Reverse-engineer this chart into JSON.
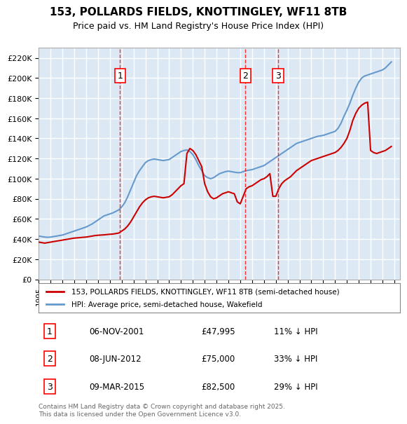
{
  "title": "153, POLLARDS FIELDS, KNOTTINGLEY, WF11 8TB",
  "subtitle": "Price paid vs. HM Land Registry's House Price Index (HPI)",
  "legend_property": "153, POLLARDS FIELDS, KNOTTINGLEY, WF11 8TB (semi-detached house)",
  "legend_hpi": "HPI: Average price, semi-detached house, Wakefield",
  "footnote": "Contains HM Land Registry data © Crown copyright and database right 2025.\nThis data is licensed under the Open Government Licence v3.0.",
  "ylabel": "",
  "ylim": [
    0,
    230000
  ],
  "yticks": [
    0,
    20000,
    40000,
    60000,
    80000,
    100000,
    120000,
    140000,
    160000,
    180000,
    200000,
    220000
  ],
  "background_color": "#dce9f5",
  "plot_bg_color": "#dce9f5",
  "grid_color": "#ffffff",
  "property_color": "#cc0000",
  "hpi_color": "#6699cc",
  "sales": [
    {
      "num": 1,
      "date_label": "06-NOV-2001",
      "price_label": "£47,995",
      "pct_label": "11% ↓ HPI",
      "year": 2001.85
    },
    {
      "num": 2,
      "date_label": "08-JUN-2012",
      "price_label": "£75,000",
      "pct_label": "33% ↓ HPI",
      "year": 2012.44
    },
    {
      "num": 3,
      "date_label": "09-MAR-2015",
      "price_label": "£82,500",
      "pct_label": "29% ↓ HPI",
      "year": 2015.19
    }
  ],
  "hpi_x": [
    1995.0,
    1995.25,
    1995.5,
    1995.75,
    1996.0,
    1996.25,
    1996.5,
    1996.75,
    1997.0,
    1997.25,
    1997.5,
    1997.75,
    1998.0,
    1998.25,
    1998.5,
    1998.75,
    1999.0,
    1999.25,
    1999.5,
    1999.75,
    2000.0,
    2000.25,
    2000.5,
    2000.75,
    2001.0,
    2001.25,
    2001.5,
    2001.75,
    2002.0,
    2002.25,
    2002.5,
    2002.75,
    2003.0,
    2003.25,
    2003.5,
    2003.75,
    2004.0,
    2004.25,
    2004.5,
    2004.75,
    2005.0,
    2005.25,
    2005.5,
    2005.75,
    2006.0,
    2006.25,
    2006.5,
    2006.75,
    2007.0,
    2007.25,
    2007.5,
    2007.75,
    2008.0,
    2008.25,
    2008.5,
    2008.75,
    2009.0,
    2009.25,
    2009.5,
    2009.75,
    2010.0,
    2010.25,
    2010.5,
    2010.75,
    2011.0,
    2011.25,
    2011.5,
    2011.75,
    2012.0,
    2012.25,
    2012.5,
    2012.75,
    2013.0,
    2013.25,
    2013.5,
    2013.75,
    2014.0,
    2014.25,
    2014.5,
    2014.75,
    2015.0,
    2015.25,
    2015.5,
    2015.75,
    2016.0,
    2016.25,
    2016.5,
    2016.75,
    2017.0,
    2017.25,
    2017.5,
    2017.75,
    2018.0,
    2018.25,
    2018.5,
    2018.75,
    2019.0,
    2019.25,
    2019.5,
    2019.75,
    2020.0,
    2020.25,
    2020.5,
    2020.75,
    2021.0,
    2021.25,
    2021.5,
    2021.75,
    2022.0,
    2022.25,
    2022.5,
    2022.75,
    2023.0,
    2023.25,
    2023.5,
    2023.75,
    2024.0,
    2024.25,
    2024.5,
    2024.75
  ],
  "hpi_y": [
    43000,
    42500,
    42000,
    41800,
    42000,
    42500,
    43000,
    43500,
    44000,
    45000,
    46000,
    47000,
    48000,
    49000,
    50000,
    51000,
    52000,
    53500,
    55000,
    57000,
    59000,
    61000,
    63000,
    64000,
    65000,
    66000,
    67500,
    69000,
    72000,
    76000,
    82000,
    89000,
    96000,
    103000,
    108000,
    112000,
    116000,
    118000,
    119000,
    119500,
    119000,
    118500,
    118000,
    118500,
    119000,
    121000,
    123000,
    125000,
    127000,
    128000,
    128500,
    127000,
    124000,
    119000,
    113000,
    108000,
    103000,
    101000,
    100000,
    101000,
    103000,
    105000,
    106000,
    107000,
    107500,
    107000,
    106500,
    106000,
    106000,
    107000,
    108000,
    108500,
    109000,
    110000,
    111000,
    112000,
    113000,
    115000,
    117000,
    119000,
    121000,
    123000,
    125000,
    127000,
    129000,
    131000,
    133000,
    135000,
    136000,
    137000,
    138000,
    139000,
    140000,
    141000,
    142000,
    142500,
    143000,
    144000,
    145000,
    146000,
    147000,
    150000,
    155000,
    162000,
    168000,
    175000,
    183000,
    190000,
    196000,
    200000,
    202000,
    203000,
    204000,
    205000,
    206000,
    207000,
    208000,
    210000,
    213000,
    216000
  ],
  "prop_x": [
    1995.0,
    1995.25,
    1995.5,
    1995.75,
    1996.0,
    1996.25,
    1996.5,
    1996.75,
    1997.0,
    1997.25,
    1997.5,
    1997.75,
    1998.0,
    1998.25,
    1998.5,
    1998.75,
    1999.0,
    1999.25,
    1999.5,
    1999.75,
    2000.0,
    2000.25,
    2000.5,
    2000.75,
    2001.0,
    2001.25,
    2001.5,
    2001.75,
    2002.0,
    2002.25,
    2002.5,
    2002.75,
    2003.0,
    2003.25,
    2003.5,
    2003.75,
    2004.0,
    2004.25,
    2004.5,
    2004.75,
    2005.0,
    2005.25,
    2005.5,
    2005.75,
    2006.0,
    2006.25,
    2006.5,
    2006.75,
    2007.0,
    2007.25,
    2007.5,
    2007.75,
    2008.0,
    2008.25,
    2008.5,
    2008.75,
    2009.0,
    2009.25,
    2009.5,
    2009.75,
    2010.0,
    2010.25,
    2010.5,
    2010.75,
    2011.0,
    2011.25,
    2011.5,
    2011.75,
    2012.0,
    2012.25,
    2012.5,
    2012.75,
    2013.0,
    2013.25,
    2013.5,
    2013.75,
    2014.0,
    2014.25,
    2014.5,
    2014.75,
    2015.0,
    2015.25,
    2015.5,
    2015.75,
    2016.0,
    2016.25,
    2016.5,
    2016.75,
    2017.0,
    2017.25,
    2017.5,
    2017.75,
    2018.0,
    2018.25,
    2018.5,
    2018.75,
    2019.0,
    2019.25,
    2019.5,
    2019.75,
    2020.0,
    2020.25,
    2020.5,
    2020.75,
    2021.0,
    2021.25,
    2021.5,
    2021.75,
    2022.0,
    2022.25,
    2022.5,
    2022.75,
    2023.0,
    2023.25,
    2023.5,
    2023.75,
    2024.0,
    2024.25,
    2024.5,
    2024.75
  ],
  "prop_y": [
    37000,
    36500,
    36000,
    36500,
    37000,
    37500,
    38000,
    38500,
    39000,
    39500,
    40000,
    40500,
    41000,
    41200,
    41500,
    41800,
    42000,
    42500,
    43000,
    43500,
    43800,
    44000,
    44200,
    44500,
    44800,
    45000,
    45500,
    46000,
    47995,
    50000,
    53000,
    57000,
    62000,
    67000,
    72000,
    76000,
    79000,
    81000,
    82000,
    82500,
    82000,
    81500,
    81000,
    81500,
    82000,
    84000,
    87000,
    90000,
    93000,
    95000,
    125000,
    130000,
    128000,
    124000,
    118000,
    112000,
    95000,
    87000,
    82000,
    80000,
    81000,
    83000,
    85000,
    86000,
    87000,
    86000,
    85000,
    77000,
    75000,
    82500,
    90000,
    92000,
    93000,
    95000,
    97000,
    99000,
    100000,
    102000,
    105000,
    82500,
    82500,
    90000,
    95000,
    98000,
    100000,
    102000,
    105000,
    108000,
    110000,
    112000,
    114000,
    116000,
    118000,
    119000,
    120000,
    121000,
    122000,
    123000,
    124000,
    125000,
    126000,
    128000,
    131000,
    135000,
    140000,
    148000,
    158000,
    165000,
    170000,
    173000,
    175000,
    176000,
    128000,
    126000,
    125000,
    126000,
    127000,
    128000,
    130000,
    132000
  ]
}
